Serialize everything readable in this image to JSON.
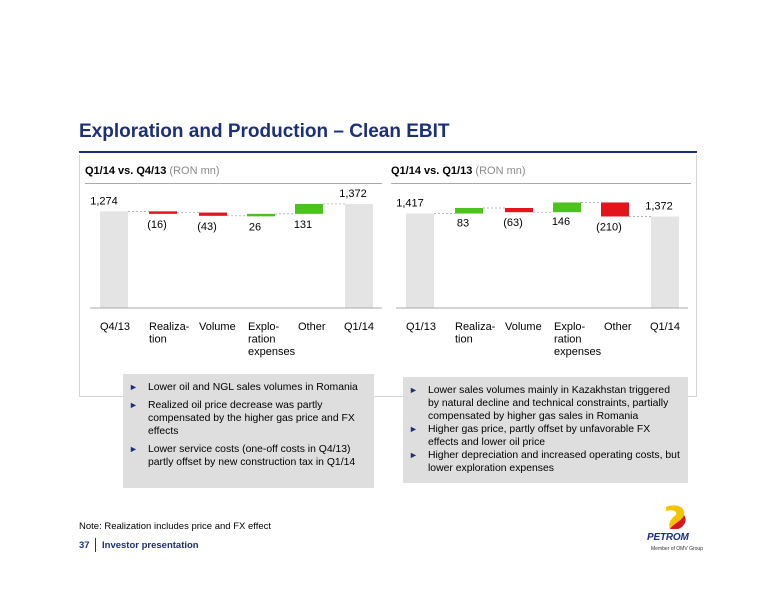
{
  "page": {
    "title": "Exploration and Production – Clean EBIT",
    "footnote": "Note: Realization includes price and FX effect",
    "page_number": "37",
    "footer_label": "Investor presentation",
    "logo": {
      "word": "PETROM",
      "subtitle": "Member of OMV Group",
      "colors": {
        "yellow": "#f5c400",
        "red": "#d7171f",
        "navy": "#1c2f7a"
      }
    }
  },
  "colors": {
    "increase": "#4cc21c",
    "decrease": "#e3141b",
    "total": "#e4e4e4",
    "title": "#1c2f7a"
  },
  "chart_data": [
    {
      "type": "bar",
      "subtype": "waterfall",
      "title": "Q1/14 vs. Q4/13",
      "unit": "(RON mn)",
      "categories": [
        "Q4/13",
        "Realiza-\ntion",
        "Volume",
        "Explo-\nration\nexpenses",
        "Other",
        "Q1/14"
      ],
      "values": [
        1274,
        -16,
        -43,
        26,
        131,
        1372
      ],
      "value_labels": [
        "1,274",
        "(16)",
        "(43)",
        "26",
        "131",
        "1,372"
      ],
      "kinds": [
        "total",
        "delta",
        "delta",
        "delta",
        "delta",
        "total"
      ],
      "ylim": [
        0,
        1450
      ]
    },
    {
      "type": "bar",
      "subtype": "waterfall",
      "title": "Q1/14 vs. Q1/13",
      "unit": "(RON mn)",
      "categories": [
        "Q1/13",
        "Realiza-\ntion",
        "Volume",
        "Explo-\nration\nexpenses",
        "Other",
        "Q1/14"
      ],
      "values": [
        1417,
        83,
        -63,
        146,
        -210,
        1372
      ],
      "value_labels": [
        "1,417",
        "83",
        "(63)",
        "146",
        "(210)",
        "1,372"
      ],
      "kinds": [
        "total",
        "delta",
        "delta",
        "delta",
        "delta",
        "total"
      ],
      "ylim": [
        0,
        1650
      ]
    }
  ],
  "notes": [
    {
      "items": [
        "Lower oil and NGL sales volumes in Romania",
        "Realized oil price decrease was partly compensated by the higher gas price and FX effects",
        "Lower service costs (one-off costs in Q4/13) partly offset by new construction tax in Q1/14"
      ]
    },
    {
      "items": [
        "Lower sales volumes mainly in Kazakhstan triggered by natural decline and technical constraints, partially compensated by higher gas sales in Romania",
        "Higher gas price, partly offset by unfavorable FX effects and lower oil price",
        "Higher depreciation and increased operating costs, but lower exploration expenses"
      ]
    }
  ]
}
